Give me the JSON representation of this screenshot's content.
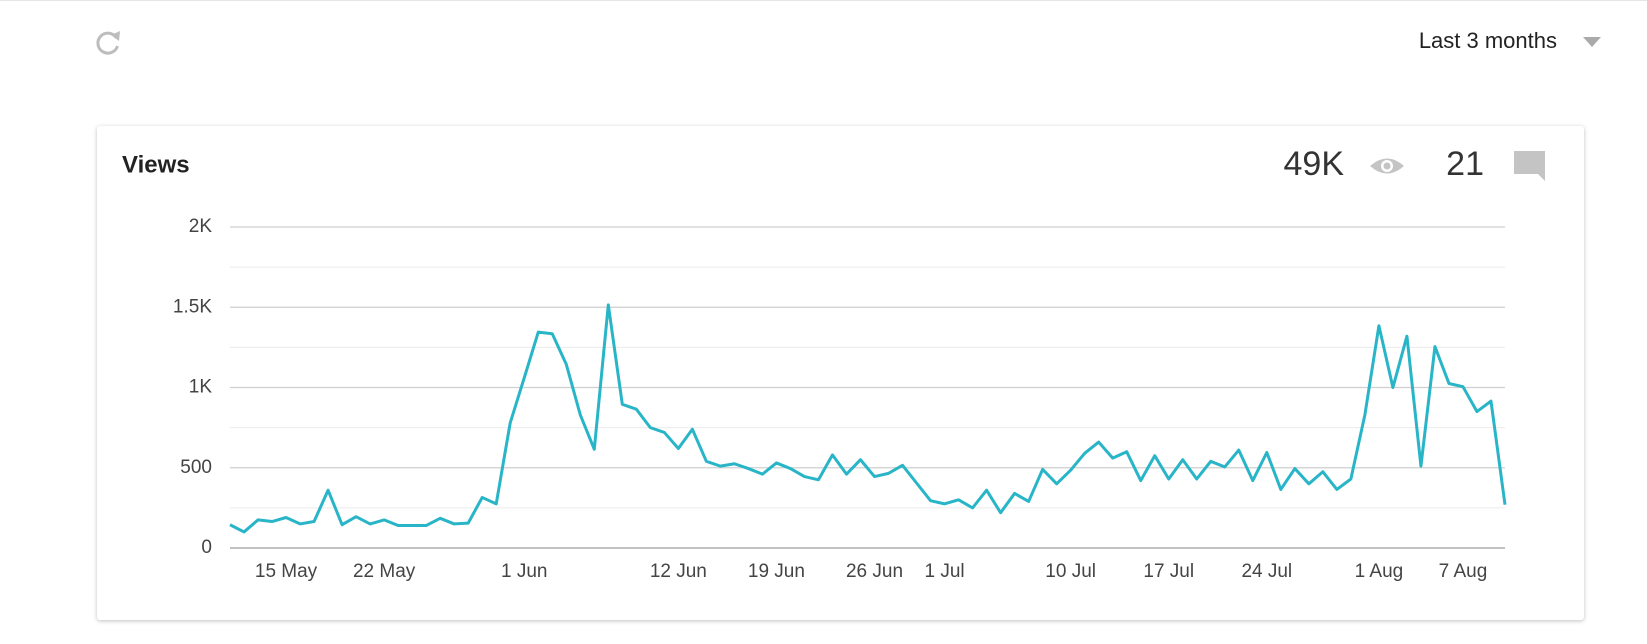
{
  "header": {
    "range": "Last 3 months"
  },
  "chart_data": {
    "type": "line",
    "title": "Views",
    "total_views": "49K",
    "total_comments": "21",
    "color": "#29b5c8",
    "categories": [
      null,
      null,
      null,
      null,
      "15 May",
      null,
      null,
      null,
      null,
      null,
      null,
      "22 May",
      null,
      null,
      null,
      null,
      null,
      null,
      null,
      null,
      null,
      "1 Jun",
      null,
      null,
      null,
      null,
      null,
      null,
      null,
      null,
      null,
      null,
      "12 Jun",
      null,
      null,
      null,
      null,
      null,
      null,
      "19 Jun",
      null,
      null,
      null,
      null,
      null,
      null,
      "26 Jun",
      null,
      null,
      null,
      null,
      "1 Jul",
      null,
      null,
      null,
      null,
      null,
      null,
      null,
      null,
      "10 Jul",
      null,
      null,
      null,
      null,
      null,
      null,
      "17 Jul",
      null,
      null,
      null,
      null,
      null,
      null,
      "24 Jul",
      null,
      null,
      null,
      null,
      null,
      null,
      null,
      "1 Aug",
      null,
      null,
      null,
      null,
      null,
      "7 Aug",
      null,
      null,
      null
    ],
    "values": [
      145,
      100,
      175,
      165,
      190,
      150,
      165,
      360,
      145,
      195,
      150,
      175,
      140,
      140,
      140,
      185,
      150,
      155,
      315,
      275,
      780,
      1060,
      1345,
      1335,
      1145,
      830,
      615,
      1515,
      895,
      865,
      750,
      720,
      620,
      740,
      540,
      510,
      525,
      495,
      460,
      530,
      495,
      445,
      425,
      580,
      460,
      550,
      445,
      465,
      515,
      405,
      295,
      275,
      300,
      250,
      360,
      220,
      340,
      290,
      490,
      400,
      485,
      590,
      660,
      560,
      600,
      420,
      575,
      430,
      550,
      430,
      540,
      505,
      610,
      420,
      595,
      365,
      495,
      400,
      475,
      365,
      430,
      830,
      1385,
      1000,
      1320,
      510,
      1255,
      1025,
      1005,
      850,
      915,
      270
    ],
    "ylim": [
      0,
      2000
    ],
    "yticks": [
      0,
      500,
      {
        "value": 1000,
        "label": "1K"
      },
      {
        "value": 1500,
        "label": "1.5K"
      },
      {
        "value": 2000,
        "label": "2K"
      }
    ],
    "minor_yticks": [
      250,
      750,
      1250,
      1750
    ],
    "grid": true
  }
}
